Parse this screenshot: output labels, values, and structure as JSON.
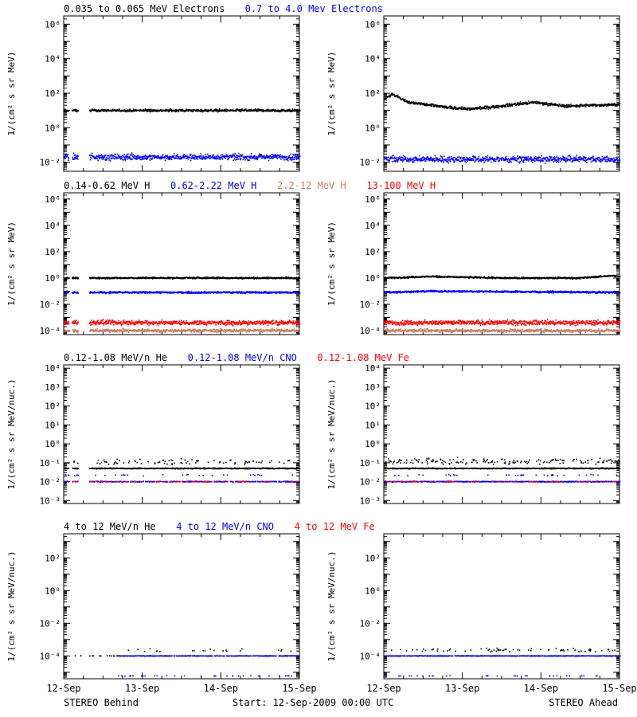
{
  "colors": {
    "axis": "#000000",
    "black": "#000000",
    "blue": "#0000ff",
    "tan": "#c87f68",
    "red": "#ff0000"
  },
  "footer": {
    "left": "STEREO Behind",
    "center": "Start: 12-Sep-2009 00:00 UTC",
    "right": "STEREO Ahead"
  },
  "chart_data": [
    {
      "type": "scatter",
      "title_row": [
        {
          "text": "0.035 to 0.065 MeV Electrons",
          "color": "black"
        },
        {
          "text": "0.7 to 4.0 Mev Electrons",
          "color": "blue"
        }
      ],
      "ylabel": "1/(cm² s sr MeV)",
      "yscale": "log",
      "ylim": [
        0.003,
        3000000.0
      ],
      "yticks": [
        {
          "v": 0.01,
          "label": "10⁻²"
        },
        {
          "v": 1,
          "label": "10⁰"
        },
        {
          "v": 100,
          "label": "10²"
        },
        {
          "v": 10000,
          "label": "10⁴"
        },
        {
          "v": 1000000,
          "label": "10⁶"
        }
      ],
      "xticks": [
        "12-Sep",
        "13-Sep",
        "14-Sep",
        "15-Sep"
      ],
      "xlim_days": [
        0,
        3
      ],
      "panels": [
        {
          "side": "STEREO Behind",
          "series": [
            {
              "color": "black",
              "level": 10,
              "jitter": 0.06,
              "gaps": [
                [
                  0.06,
                  0.1
                ],
                [
                  0.18,
                  0.32
                ]
              ]
            },
            {
              "color": "blue",
              "level": 0.02,
              "jitter": 0.15,
              "gaps": [
                [
                  0.06,
                  0.1
                ],
                [
                  0.18,
                  0.32
                ]
              ]
            }
          ]
        },
        {
          "side": "STEREO Ahead",
          "series": [
            {
              "color": "black",
              "profile": [
                [
                  0,
                  50
                ],
                [
                  0.1,
                  90
                ],
                [
                  0.3,
                  30
                ],
                [
                  0.8,
                  15
                ],
                [
                  1.1,
                  12
                ],
                [
                  1.5,
                  18
                ],
                [
                  1.9,
                  30
                ],
                [
                  2.3,
                  18
                ],
                [
                  3,
                  22
                ]
              ],
              "jitter": 0.07
            },
            {
              "color": "blue",
              "level": 0.015,
              "jitter": 0.15
            }
          ]
        }
      ]
    },
    {
      "type": "scatter",
      "title_row": [
        {
          "text": "0.14-0.62 MeV H",
          "color": "black"
        },
        {
          "text": "0.62-2.22 MeV H",
          "color": "blue"
        },
        {
          "text": "2.2-12 MeV H",
          "color": "tan"
        },
        {
          "text": "13-100 MeV H",
          "color": "red"
        }
      ],
      "ylabel": "1/(cm² s sr MeV)",
      "yscale": "log",
      "ylim": [
        5e-05,
        3000000.0
      ],
      "yticks": [
        {
          "v": 0.0001,
          "label": "10⁻⁴"
        },
        {
          "v": 0.01,
          "label": "10⁻²"
        },
        {
          "v": 1,
          "label": "10⁰"
        },
        {
          "v": 100,
          "label": "10²"
        },
        {
          "v": 10000,
          "label": "10⁴"
        },
        {
          "v": 1000000,
          "label": "10⁶"
        }
      ],
      "xticks": [
        "12-Sep",
        "13-Sep",
        "14-Sep",
        "15-Sep"
      ],
      "xlim_days": [
        0,
        3
      ],
      "panels": [
        {
          "side": "STEREO Behind",
          "series": [
            {
              "color": "black",
              "level": 1.0,
              "jitter": 0.05,
              "gaps": [
                [
                  0.06,
                  0.1
                ],
                [
                  0.18,
                  0.32
                ]
              ]
            },
            {
              "color": "blue",
              "level": 0.08,
              "jitter": 0.06,
              "gaps": [
                [
                  0.06,
                  0.1
                ],
                [
                  0.18,
                  0.32
                ]
              ]
            },
            {
              "color": "tan",
              "level": 0.0001,
              "jitter": 0.1,
              "gaps": [
                [
                  0.06,
                  0.1
                ],
                [
                  0.18,
                  0.32
                ]
              ]
            },
            {
              "color": "red",
              "level": 0.0004,
              "jitter": 0.15,
              "gaps": [
                [
                  0.06,
                  0.1
                ],
                [
                  0.18,
                  0.32
                ]
              ]
            }
          ]
        },
        {
          "side": "STEREO Ahead",
          "series": [
            {
              "color": "black",
              "profile": [
                [
                  0,
                  1.0
                ],
                [
                  0.6,
                  1.3
                ],
                [
                  1.5,
                  1.0
                ],
                [
                  2.5,
                  1.0
                ],
                [
                  2.9,
                  1.5
                ],
                [
                  3,
                  1.3
                ]
              ],
              "jitter": 0.05
            },
            {
              "color": "blue",
              "profile": [
                [
                  0,
                  0.08
                ],
                [
                  0.6,
                  0.1
                ],
                [
                  3,
                  0.08
                ]
              ],
              "jitter": 0.06
            },
            {
              "color": "tan",
              "level": 0.0001,
              "jitter": 0.1
            },
            {
              "color": "red",
              "level": 0.0004,
              "jitter": 0.15
            }
          ]
        }
      ]
    },
    {
      "type": "scatter",
      "title_row": [
        {
          "text": "0.12-1.08 MeV/n He",
          "color": "black"
        },
        {
          "text": "0.12-1.08 MeV/n CNO",
          "color": "blue"
        },
        {
          "text": "0.12-1.08 MeV Fe",
          "color": "red"
        }
      ],
      "ylabel": "1/(cm² s sr MeV/nuc.)",
      "yscale": "log",
      "ylim": [
        0.0007,
        15000
      ],
      "yticks": [
        {
          "v": 0.001,
          "label": "10⁻³"
        },
        {
          "v": 0.01,
          "label": "10⁻²"
        },
        {
          "v": 0.1,
          "label": "10⁻¹"
        },
        {
          "v": 1,
          "label": "10⁰"
        },
        {
          "v": 10,
          "label": "10¹"
        },
        {
          "v": 100,
          "label": "10²"
        },
        {
          "v": 1000,
          "label": "10³"
        },
        {
          "v": 10000,
          "label": "10⁴"
        }
      ],
      "xticks": [
        "12-Sep",
        "13-Sep",
        "14-Sep",
        "15-Sep"
      ],
      "xlim_days": [
        0,
        3
      ],
      "panels": [
        {
          "side": "STEREO Behind",
          "series": [
            {
              "color": "black",
              "level": 0.05,
              "jitter": 0.02,
              "sparse": 0.9,
              "gaps": [
                [
                  0.06,
                  0.1
                ],
                [
                  0.18,
                  0.32
                ]
              ]
            },
            {
              "color": "black",
              "level": 0.11,
              "jitter": 0.12,
              "sparse": 0.12,
              "gaps": [
                [
                  0.06,
                  0.1
                ],
                [
                  0.18,
                  0.32
                ]
              ]
            },
            {
              "color": "blue",
              "level": 0.01,
              "jitter": 0.02,
              "sparse": 0.5,
              "gaps": [
                [
                  0.06,
                  0.1
                ],
                [
                  0.18,
                  0.32
                ]
              ]
            },
            {
              "color": "blue",
              "level": 0.022,
              "jitter": 0.04,
              "sparse": 0.05,
              "gaps": [
                [
                  0.06,
                  0.1
                ],
                [
                  0.18,
                  0.32
                ]
              ]
            },
            {
              "color": "red",
              "level": 0.01,
              "jitter": 0.02,
              "sparse": 0.15,
              "gaps": [
                [
                  0.06,
                  0.1
                ],
                [
                  0.18,
                  0.32
                ]
              ]
            }
          ]
        },
        {
          "side": "STEREO Ahead",
          "series": [
            {
              "color": "black",
              "level": 0.05,
              "jitter": 0.02,
              "sparse": 0.95
            },
            {
              "color": "black",
              "level": 0.12,
              "jitter": 0.14,
              "sparse": 0.22
            },
            {
              "color": "blue",
              "level": 0.01,
              "jitter": 0.02,
              "sparse": 0.6
            },
            {
              "color": "blue",
              "level": 0.022,
              "jitter": 0.04,
              "sparse": 0.05
            },
            {
              "color": "red",
              "level": 0.01,
              "jitter": 0.02,
              "sparse": 0.15
            }
          ]
        }
      ]
    },
    {
      "type": "scatter",
      "title_row": [
        {
          "text": "4 to 12 MeV/n He",
          "color": "black"
        },
        {
          "text": "4 to 12 MeV/n CNO",
          "color": "blue"
        },
        {
          "text": "4 to 12 MeV Fe",
          "color": "red"
        }
      ],
      "ylabel": "1/(cm² s sr MeV/nuc.)",
      "yscale": "log",
      "ylim": [
        4e-06,
        3000
      ],
      "yticks": [
        {
          "v": 0.0001,
          "label": "10⁻⁴"
        },
        {
          "v": 0.01,
          "label": "10⁻²"
        },
        {
          "v": 1,
          "label": "10⁰"
        },
        {
          "v": 100,
          "label": "10²"
        }
      ],
      "xticks": [
        "12-Sep",
        "13-Sep",
        "14-Sep",
        "15-Sep"
      ],
      "xlim_days": [
        0,
        3
      ],
      "panels": [
        {
          "side": "STEREO Behind",
          "series": [
            {
              "color": "black",
              "level": 0.0001,
              "jitter": 0.01,
              "sparse": 0.15,
              "gaps": [
                [
                  0,
                  0.13
                ],
                [
                  0.22,
                  0.32
                ]
              ]
            },
            {
              "color": "black",
              "level": 0.00022,
              "jitter": 0.08,
              "sparse": 0.05,
              "gaps": [
                [
                  0,
                  0.7
                ]
              ]
            },
            {
              "color": "blue",
              "level": 0.0001,
              "jitter": 0.01,
              "sparse": 0.5,
              "gaps": [
                [
                  0,
                  0.7
                ]
              ]
            },
            {
              "color": "blue",
              "level": 6e-06,
              "jitter": 0.01,
              "sparse": 0.04,
              "gaps": [
                [
                  0,
                  0.6
                ]
              ]
            }
          ]
        },
        {
          "side": "STEREO Ahead",
          "series": [
            {
              "color": "black",
              "level": 0.00022,
              "jitter": 0.1,
              "sparse": 0.12
            },
            {
              "color": "black",
              "level": 0.0001,
              "jitter": 0.01,
              "sparse": 0.2
            },
            {
              "color": "blue",
              "level": 0.0001,
              "jitter": 0.01,
              "sparse": 0.55
            },
            {
              "color": "blue",
              "level": 6e-06,
              "jitter": 0.01,
              "sparse": 0.04
            }
          ]
        }
      ]
    }
  ]
}
